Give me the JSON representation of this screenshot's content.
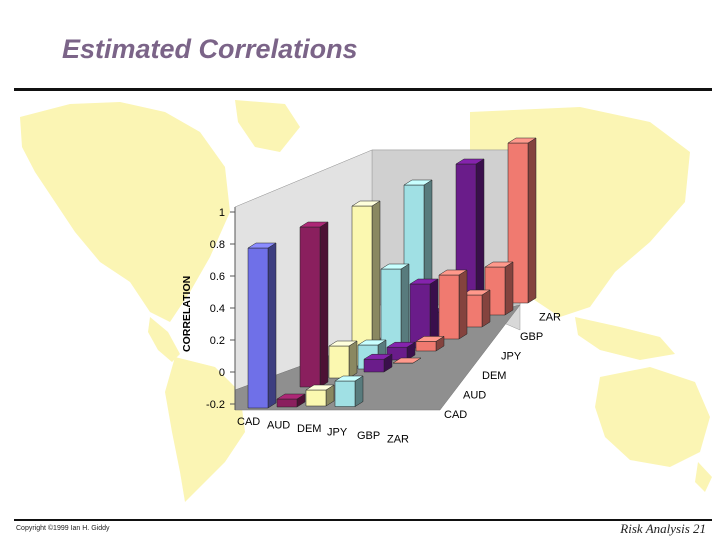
{
  "slide": {
    "title": "Estimated Correlations",
    "copyright": "Copyright ©1999 Ian H. Giddy",
    "page_label": "Risk Analysis 21"
  },
  "colors": {
    "title": "#7b6488",
    "map": "#fbf5b4",
    "floor": "#8f8f8f",
    "wall": "#d8d8d8"
  },
  "chart_data": {
    "type": "bar",
    "subtype": "3d-bar",
    "ylabel": "CORRELATION",
    "ylim": [
      -0.2,
      1
    ],
    "yticks": [
      "1",
      "0.8",
      "0.6",
      "0.4",
      "0.2",
      "0",
      "-0.2"
    ],
    "x_categories": [
      "CAD",
      "AUD",
      "DEM",
      "JPY",
      "GBP",
      "ZAR"
    ],
    "depth_categories": [
      "CAD",
      "AUD",
      "DEM",
      "JPY",
      "GBP",
      "ZAR"
    ],
    "grid": false,
    "series_colors": {
      "CAD": "#6f70e8",
      "AUD": "#8a1f5e",
      "DEM": "#fbf8b0",
      "JPY": "#a0e0e4",
      "GBP": "#6a1c8a",
      "ZAR": "#f07a70"
    },
    "values": [
      {
        "x": "CAD",
        "depth": "CAD",
        "value": 1.0
      },
      {
        "x": "AUD",
        "depth": "CAD",
        "value": -0.05
      },
      {
        "x": "DEM",
        "depth": "CAD",
        "value": -0.1
      },
      {
        "x": "JPY",
        "depth": "CAD",
        "value": -0.16
      },
      {
        "x": "GBP",
        "depth": "CAD",
        "value": 0.08
      },
      {
        "x": "ZAR",
        "depth": "CAD",
        "value": 0.0
      },
      {
        "x": "AUD",
        "depth": "AUD",
        "value": 1.0
      },
      {
        "x": "JPY",
        "depth": "AUD",
        "value": 0.15
      },
      {
        "x": "GBP",
        "depth": "AUD",
        "value": 0.08
      },
      {
        "x": "DEM",
        "depth": "AUD",
        "value": 0.2
      },
      {
        "x": "ZAR",
        "depth": "AUD",
        "value": 0.06
      },
      {
        "x": "DEM",
        "depth": "DEM",
        "value": 1.0
      },
      {
        "x": "JPY",
        "depth": "DEM",
        "value": 0.55
      },
      {
        "x": "GBP",
        "depth": "DEM",
        "value": 0.4
      },
      {
        "x": "ZAR",
        "depth": "DEM",
        "value": 0.4
      },
      {
        "x": "JPY",
        "depth": "JPY",
        "value": 1.0
      },
      {
        "x": "GBP",
        "depth": "JPY",
        "value": 0.15
      },
      {
        "x": "ZAR",
        "depth": "JPY",
        "value": 0.2
      },
      {
        "x": "GBP",
        "depth": "GBP",
        "value": 1.0
      },
      {
        "x": "ZAR",
        "depth": "GBP",
        "value": 0.3
      },
      {
        "x": "ZAR",
        "depth": "ZAR",
        "value": 1.0
      }
    ]
  }
}
